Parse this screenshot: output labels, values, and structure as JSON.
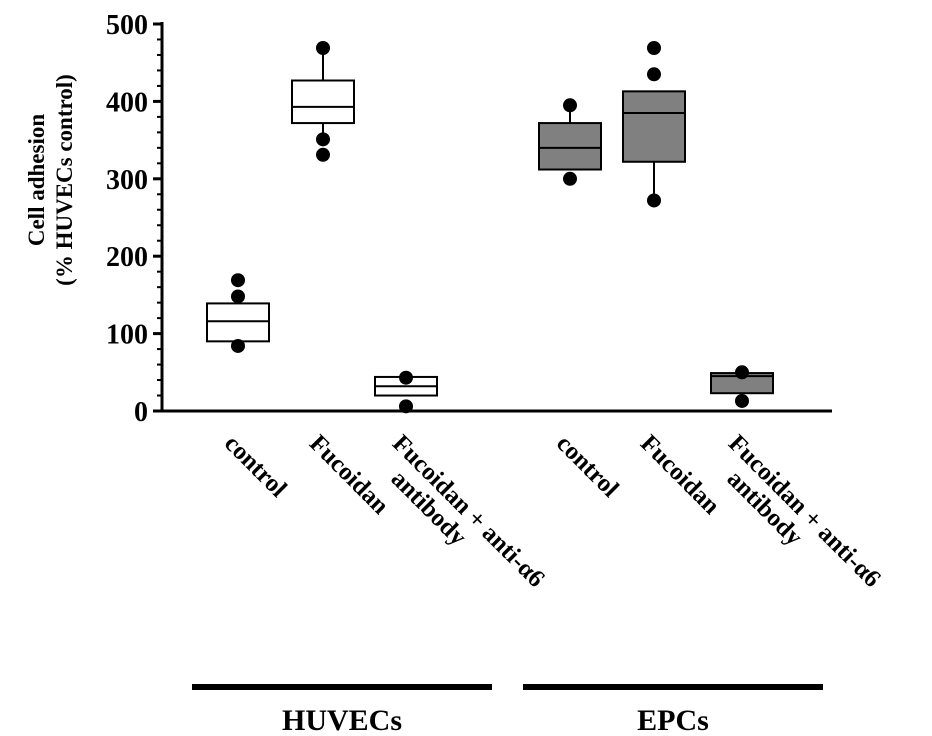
{
  "chart_data": {
    "type": "box",
    "ylabel": [
      "Cell adhesion",
      "(% HUVECs control)"
    ],
    "ylim": [
      0,
      500
    ],
    "yticks": [
      0,
      100,
      200,
      300,
      400,
      500
    ],
    "groups": [
      {
        "name": "HUVECs",
        "fill": "#ffffff",
        "boxes": [
          {
            "label": [
              "control"
            ],
            "q1": 90,
            "median": 116,
            "q3": 139,
            "whisker_low": 90,
            "whisker_high": 139,
            "outliers": [
              169,
              148,
              84
            ]
          },
          {
            "label": [
              "Fucoidan"
            ],
            "q1": 372,
            "median": 393,
            "q3": 427,
            "whisker_low": 352,
            "whisker_high": 462,
            "outliers": [
              469,
              351,
              331
            ]
          },
          {
            "label": [
              "Fucoidan + anti-α6",
              "antibody"
            ],
            "q1": 20,
            "median": 32,
            "q3": 44,
            "whisker_low": 20,
            "whisker_high": 44,
            "outliers": [
              43,
              6
            ]
          }
        ]
      },
      {
        "name": "EPCs",
        "fill": "#808080",
        "boxes": [
          {
            "label": [
              "control"
            ],
            "q1": 312,
            "median": 340,
            "q3": 372,
            "whisker_low": 312,
            "whisker_high": 390,
            "outliers": [
              395,
              300
            ]
          },
          {
            "label": [
              "Fucoidan"
            ],
            "q1": 322,
            "median": 385,
            "q3": 413,
            "whisker_low": 272,
            "whisker_high": 413,
            "outliers": [
              469,
              435,
              272
            ]
          },
          {
            "label": [
              "Fucoidan + anti-α6",
              "antibody"
            ],
            "q1": 23,
            "median": 45,
            "q3": 49,
            "whisker_low": 16,
            "whisker_high": 49,
            "outliers": [
              50,
              13
            ]
          }
        ]
      }
    ]
  }
}
